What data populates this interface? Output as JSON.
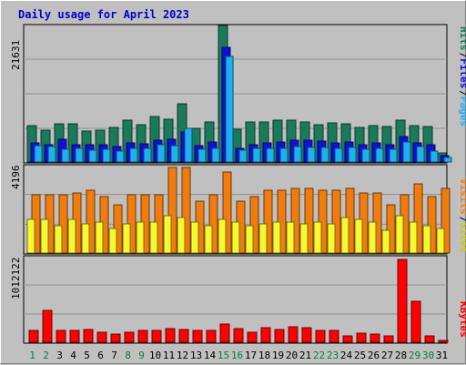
{
  "chart_data": [
    {
      "type": "bar",
      "title": "Daily usage for April 2023",
      "categories": [
        "1",
        "2",
        "3",
        "4",
        "5",
        "6",
        "7",
        "8",
        "9",
        "10",
        "11",
        "12",
        "13",
        "14",
        "15",
        "16",
        "17",
        "18",
        "19",
        "20",
        "21",
        "22",
        "23",
        "24",
        "25",
        "26",
        "27",
        "28",
        "29",
        "30",
        "31"
      ],
      "weekend_days": [
        "1",
        "2",
        "8",
        "9",
        "15",
        "16",
        "22",
        "23",
        "29",
        "30"
      ],
      "ymax_label": "21631",
      "ylim": [
        0,
        21631
      ],
      "series": [
        {
          "name": "Hits",
          "color": "#1b7a5a",
          "values": [
            5800,
            5100,
            6000,
            6000,
            4900,
            5100,
            5500,
            6700,
            5900,
            7200,
            6800,
            9300,
            5400,
            6300,
            21631,
            5200,
            6300,
            6300,
            6700,
            6700,
            6300,
            5900,
            6200,
            6100,
            5500,
            5800,
            5600,
            6700,
            5800,
            5600,
            1500
          ]
        },
        {
          "name": "Files",
          "color": "#1010d8",
          "values": [
            3100,
            2800,
            3600,
            2700,
            2700,
            2800,
            2400,
            3100,
            2900,
            3400,
            3600,
            4800,
            2600,
            3200,
            18100,
            2100,
            2800,
            3100,
            3200,
            3400,
            3500,
            3300,
            3100,
            3200,
            2700,
            3000,
            2800,
            4100,
            3100,
            2700,
            1000
          ]
        },
        {
          "name": "Pages",
          "color": "#20b0f0",
          "values": [
            2600,
            2500,
            2000,
            2100,
            1900,
            2000,
            1800,
            2200,
            2100,
            2700,
            2600,
            5300,
            2000,
            2100,
            16700,
            1900,
            2100,
            2200,
            2200,
            2400,
            2300,
            2300,
            2200,
            2300,
            2000,
            2200,
            2000,
            3200,
            2400,
            1800,
            700
          ]
        }
      ]
    },
    {
      "type": "bar",
      "ymax_label": "4196",
      "ylim": [
        0,
        4196
      ],
      "categories": [
        "1",
        "2",
        "3",
        "4",
        "5",
        "6",
        "7",
        "8",
        "9",
        "10",
        "11",
        "12",
        "13",
        "14",
        "15",
        "16",
        "17",
        "18",
        "19",
        "20",
        "21",
        "22",
        "23",
        "24",
        "25",
        "26",
        "27",
        "28",
        "29",
        "30",
        "31"
      ],
      "series": [
        {
          "name": "Visits",
          "color": "#f07c10",
          "values": [
            2800,
            2800,
            2800,
            2900,
            3000,
            2700,
            2300,
            2800,
            2800,
            2800,
            4100,
            4100,
            2500,
            2800,
            3900,
            2500,
            2700,
            3000,
            3000,
            3100,
            3100,
            3000,
            3000,
            3100,
            2900,
            2900,
            2300,
            2800,
            3300,
            2700,
            3100
          ]
        },
        {
          "name": "Sites",
          "color": "#f0f020",
          "values": [
            1600,
            1600,
            1300,
            1600,
            1400,
            1500,
            1200,
            1400,
            1500,
            1500,
            1800,
            1700,
            1500,
            1300,
            1600,
            1500,
            1300,
            1400,
            1500,
            1500,
            1400,
            1500,
            1400,
            1700,
            1600,
            1500,
            1100,
            1800,
            1500,
            1300,
            1200
          ]
        }
      ]
    },
    {
      "type": "bar",
      "ymax_label": "1012122",
      "ylim": [
        0,
        1012122
      ],
      "categories": [
        "1",
        "2",
        "3",
        "4",
        "5",
        "6",
        "7",
        "8",
        "9",
        "10",
        "11",
        "12",
        "13",
        "14",
        "15",
        "16",
        "17",
        "18",
        "19",
        "20",
        "21",
        "22",
        "23",
        "24",
        "25",
        "26",
        "27",
        "28",
        "29",
        "30",
        "31"
      ],
      "series": [
        {
          "name": "KBytes",
          "color": "#ff0000",
          "values": [
            140000,
            380000,
            140000,
            135000,
            150000,
            115000,
            100000,
            120000,
            145000,
            145000,
            160000,
            155000,
            145000,
            145000,
            220000,
            165000,
            120000,
            175000,
            150000,
            180000,
            175000,
            140000,
            140000,
            80000,
            105000,
            100000,
            70000,
            980000,
            480000,
            75000,
            20000
          ]
        }
      ]
    }
  ]
}
